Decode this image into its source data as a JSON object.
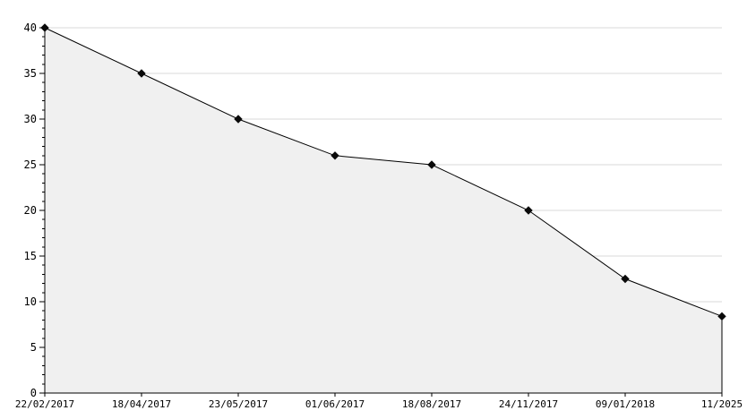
{
  "chart_data": {
    "type": "area",
    "title": "",
    "xlabel": "",
    "ylabel": "",
    "categories": [
      "22/02/2017",
      "18/04/2017",
      "23/05/2017",
      "01/06/2017",
      "18/08/2017",
      "24/11/2017",
      "09/01/2018",
      "11/2025"
    ],
    "values": [
      40,
      35,
      30,
      26,
      25,
      20,
      12.5,
      8.4
    ],
    "ylim": [
      0,
      40
    ],
    "y_major_step": 5,
    "y_minor_step": 1,
    "y_tick_labels": [
      "0",
      "5",
      "10",
      "15",
      "20",
      "25",
      "30",
      "35",
      "40"
    ],
    "grid": true,
    "legend": false,
    "marker_shape": "diamond",
    "colors": {
      "line": "#000000",
      "marker": "#0a0a0a",
      "area_fill": "#f0f0f0",
      "grid_line": "#d9d9d9",
      "axis": "#000000",
      "label_text": "#000000",
      "background": "#ffffff"
    }
  }
}
